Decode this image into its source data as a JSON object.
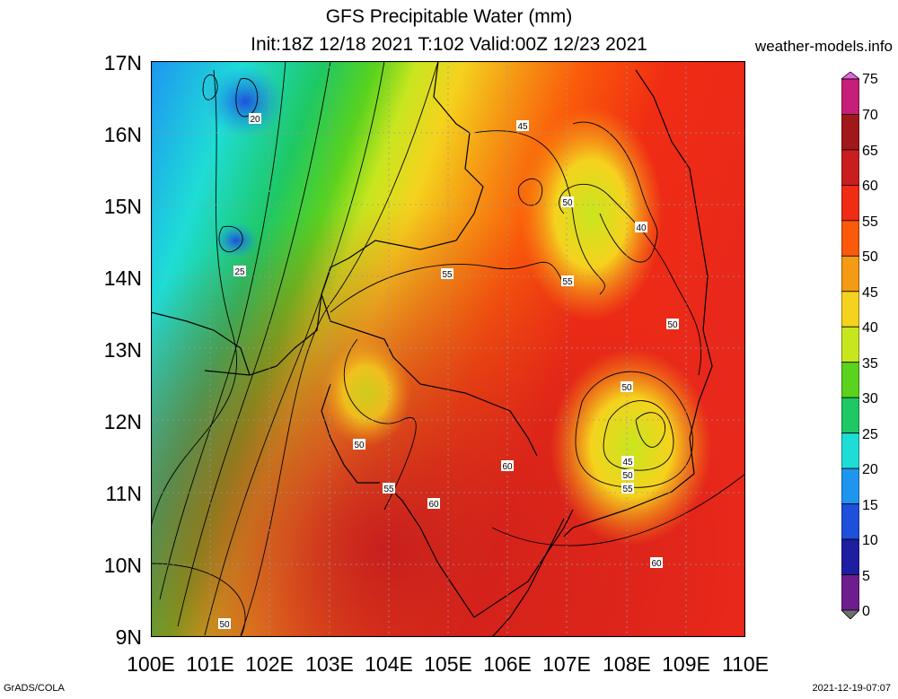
{
  "title": "GFS Precipitable Water (mm)",
  "subtitle": "Init:18Z 12/18 2021 T:102 Valid:00Z 12/23 2021",
  "site": "weather-models.info",
  "footer_left": "GrADS/COLA",
  "footer_right": "2021-12-19-07:07",
  "lat_labels": [
    "17N",
    "16N",
    "15N",
    "14N",
    "13N",
    "12N",
    "11N",
    "10N",
    "9N"
  ],
  "lon_labels": [
    "100E",
    "101E",
    "102E",
    "103E",
    "104E",
    "105E",
    "106E",
    "107E",
    "108E",
    "109E",
    "110E"
  ],
  "colorbar": {
    "levels": [
      "75",
      "70",
      "65",
      "60",
      "55",
      "50",
      "45",
      "40",
      "35",
      "30",
      "25",
      "20",
      "15",
      "10",
      "5",
      "0"
    ],
    "colors": [
      "#e066e0",
      "#c71e7a",
      "#a0181a",
      "#c81e1e",
      "#f02c14",
      "#fa5a0a",
      "#f59a14",
      "#f5d21e",
      "#c8e61e",
      "#5ad21e",
      "#1ec864",
      "#1eddd6",
      "#1e96f0",
      "#1e50dc",
      "#1e1ea0",
      "#6e1e8c",
      "#6e6e6e"
    ]
  },
  "contour_labels": [
    {
      "text": "20"
    },
    {
      "text": "25"
    },
    {
      "text": "45"
    },
    {
      "text": "50"
    },
    {
      "text": "40"
    },
    {
      "text": "55"
    },
    {
      "text": "55"
    },
    {
      "text": "50"
    },
    {
      "text": "50"
    },
    {
      "text": "50"
    },
    {
      "text": "45"
    },
    {
      "text": "50"
    },
    {
      "text": "55"
    },
    {
      "text": "60"
    },
    {
      "text": "55"
    },
    {
      "text": "60"
    },
    {
      "text": "60"
    },
    {
      "text": "50"
    }
  ]
}
